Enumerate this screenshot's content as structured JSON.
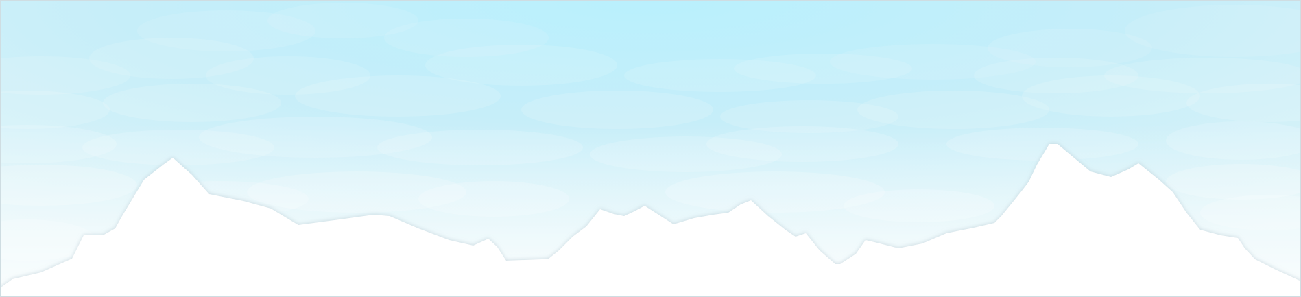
{
  "scene": {
    "colors": {
      "sky_top": "#b6eefc",
      "sky_mid": "#cdeef8",
      "sky_bottom": "#eef9fb",
      "cloud_light": "#ffffff",
      "mountain": "#ffffff",
      "mountain_shadow": "#dfe9ee"
    },
    "icons": [
      "cloud-layers",
      "mountain-silhouette"
    ]
  }
}
